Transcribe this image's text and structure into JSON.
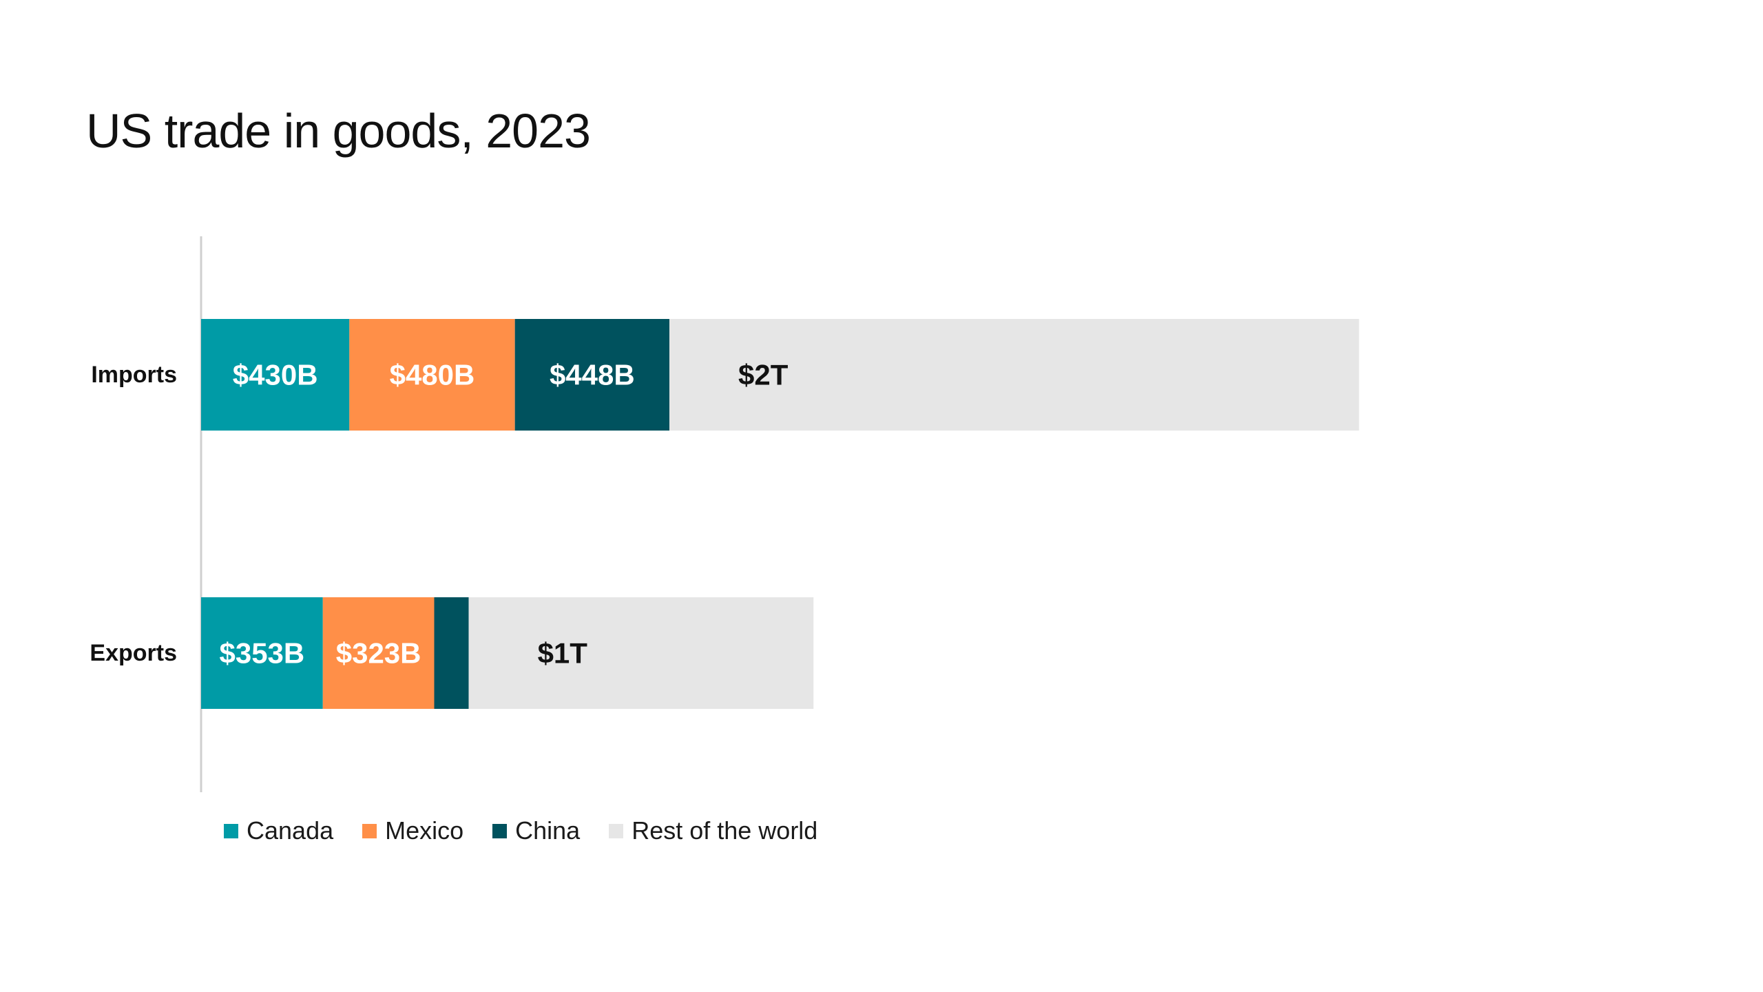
{
  "chart_data": {
    "type": "bar",
    "orientation": "horizontal",
    "stacked": true,
    "title": "US trade in goods, 2023",
    "categories": [
      "Imports",
      "Exports"
    ],
    "unit": "USD billions",
    "series": [
      {
        "name": "Canada",
        "color": "#009ba6",
        "values": [
          430,
          353
        ],
        "labels": [
          "$430B",
          "$353B"
        ],
        "label_color": "#ffffff"
      },
      {
        "name": "Mexico",
        "color": "#ff8f48",
        "values": [
          480,
          323
        ],
        "labels": [
          "$480B",
          "$323B"
        ],
        "label_color": "#ffffff"
      },
      {
        "name": "China",
        "color": "#00525e",
        "values": [
          448,
          100
        ],
        "labels": [
          "$448B",
          ""
        ],
        "label_color": "#ffffff"
      },
      {
        "name": "Rest of the world",
        "color": "#e6e6e6",
        "values": [
          2000,
          1000
        ],
        "labels": [
          "$2T",
          "$1T"
        ],
        "label_color": "#111111"
      }
    ],
    "xlim": [
      0,
      4100
    ],
    "grid": false,
    "legend_position": "bottom-left"
  }
}
